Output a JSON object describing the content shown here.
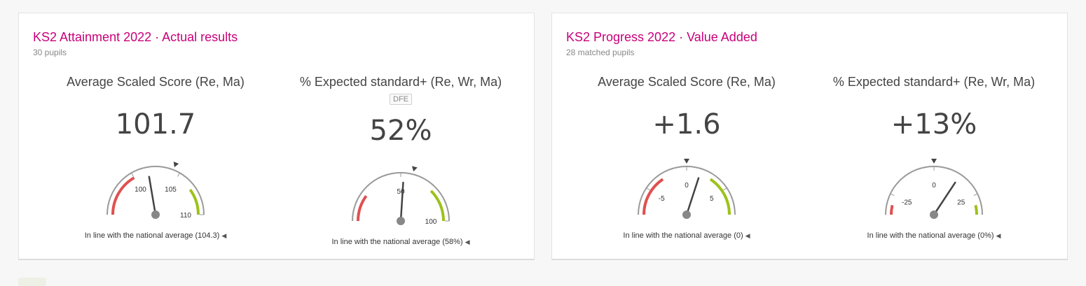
{
  "cards": [
    {
      "title": "KS2 Attainment 2022 · Actual results",
      "subtitle": "30 pupils",
      "metrics": [
        {
          "heading": "Average Scaled Score (Re, Ma)",
          "badge": "",
          "value": "101.7",
          "caption": "In line with the national average (104.3)",
          "gauge": {
            "min": 95,
            "max": 110,
            "national": 104.3,
            "value": 101.7,
            "labels": [
              {
                "v": 100,
                "t": "100"
              },
              {
                "v": 105,
                "t": "105"
              },
              {
                "v": 110,
                "t": "110"
              }
            ],
            "red": [
              95,
              100
            ],
            "green": [
              107,
              110
            ]
          }
        },
        {
          "heading": "% Expected standard+ (Re, Wr, Ma)",
          "badge": "DFE",
          "value": "52%",
          "caption": "In line with the national average (58%)",
          "gauge": {
            "min": 0,
            "max": 100,
            "national": 58,
            "value": 52,
            "labels": [
              {
                "v": 50,
                "t": "50"
              },
              {
                "v": 100,
                "t": "100"
              }
            ],
            "red": [
              0,
              20
            ],
            "green": [
              75,
              100
            ]
          }
        }
      ]
    },
    {
      "title": "KS2 Progress 2022 · Value Added",
      "subtitle": "28 matched pupils",
      "metrics": [
        {
          "heading": "Average Scaled Score (Re, Ma)",
          "badge": "",
          "value": "+1.6",
          "caption": "In line with the national average (0)",
          "gauge": {
            "min": -8,
            "max": 8,
            "national": 0,
            "value": 1.6,
            "labels": [
              {
                "v": -5,
                "t": "-5"
              },
              {
                "v": 0,
                "t": "0"
              },
              {
                "v": 5,
                "t": "5"
              }
            ],
            "red": [
              -8,
              -3
            ],
            "green": [
              3,
              8
            ]
          }
        },
        {
          "heading": "% Expected standard+ (Re, Wr, Ma)",
          "badge": "",
          "value": "+13%",
          "caption": "In line with the national average (0%)",
          "gauge": {
            "min": -35,
            "max": 35,
            "national": 0,
            "value": 13,
            "labels": [
              {
                "v": -25,
                "t": "-25"
              },
              {
                "v": 0,
                "t": "0"
              },
              {
                "v": 25,
                "t": "25"
              }
            ],
            "red": [
              -35,
              -30
            ],
            "green": [
              30,
              35
            ]
          }
        }
      ]
    }
  ],
  "colors": {
    "title": "#c8007a",
    "red": "#e05050",
    "green": "#9cc21a",
    "track": "#9a9a9a",
    "needle": "#444444",
    "hub": "#888888"
  }
}
